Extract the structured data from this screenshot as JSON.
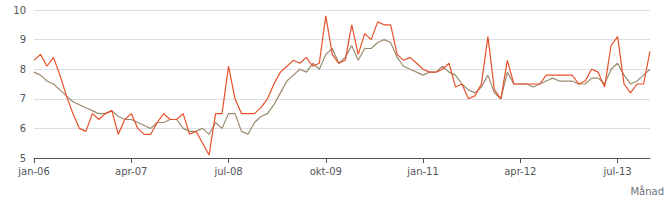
{
  "chart_data": {
    "type": "line",
    "xlabel": "Månad",
    "categories": [
      "jan-06",
      null,
      null,
      null,
      null,
      null,
      null,
      null,
      null,
      null,
      null,
      null,
      null,
      null,
      null,
      "apr-07",
      null,
      null,
      null,
      null,
      null,
      null,
      null,
      null,
      null,
      null,
      null,
      null,
      null,
      null,
      "jul-08",
      null,
      null,
      null,
      null,
      null,
      null,
      null,
      null,
      null,
      null,
      null,
      null,
      null,
      null,
      "okt-09",
      null,
      null,
      null,
      null,
      null,
      null,
      null,
      null,
      null,
      null,
      null,
      null,
      null,
      null,
      "jan-11",
      null,
      null,
      null,
      null,
      null,
      null,
      null,
      null,
      null,
      null,
      null,
      null,
      null,
      null,
      "apr-12",
      null,
      null,
      null,
      null,
      null,
      null,
      null,
      null,
      null,
      null,
      null,
      null,
      null,
      null,
      "jul-13",
      null,
      null,
      null,
      null,
      null
    ],
    "series": [
      {
        "color": "#9b8b6e",
        "values": [
          7.9,
          7.8,
          7.6,
          7.5,
          7.3,
          7.1,
          6.9,
          6.8,
          6.7,
          6.6,
          6.5,
          6.5,
          6.6,
          6.4,
          6.3,
          6.3,
          6.2,
          6.1,
          6.0,
          6.2,
          6.2,
          6.3,
          6.3,
          6.0,
          5.9,
          5.9,
          6.0,
          5.8,
          6.2,
          6.0,
          6.5,
          6.5,
          5.9,
          5.8,
          6.2,
          6.4,
          6.5,
          6.8,
          7.2,
          7.6,
          7.8,
          8.0,
          7.9,
          8.2,
          8.0,
          8.5,
          8.7,
          8.2,
          8.4,
          8.8,
          8.3,
          8.7,
          8.7,
          8.9,
          9.0,
          8.9,
          8.4,
          8.1,
          8.0,
          7.9,
          7.8,
          7.9,
          7.9,
          8.1,
          7.9,
          7.8,
          7.5,
          7.3,
          7.2,
          7.4,
          7.8,
          7.2,
          7.0,
          7.9,
          7.5,
          7.5,
          7.5,
          7.4,
          7.5,
          7.6,
          7.7,
          7.6,
          7.6,
          7.6,
          7.5,
          7.5,
          7.7,
          7.7,
          7.5,
          8.0,
          8.2,
          7.8,
          7.5,
          7.6,
          7.8,
          8.0
        ]
      },
      {
        "color": "#e8502a",
        "values": [
          8.3,
          8.5,
          8.1,
          8.4,
          7.8,
          7.1,
          6.5,
          6.0,
          5.9,
          6.5,
          6.3,
          6.5,
          6.6,
          5.8,
          6.3,
          6.5,
          6.0,
          5.8,
          5.8,
          6.2,
          6.5,
          6.3,
          6.3,
          6.5,
          5.8,
          5.9,
          5.5,
          5.1,
          6.5,
          6.5,
          8.1,
          7.0,
          6.5,
          6.5,
          6.5,
          6.7,
          7.0,
          7.5,
          7.9,
          8.1,
          8.3,
          8.2,
          8.4,
          8.1,
          8.2,
          9.8,
          8.5,
          8.2,
          8.3,
          9.5,
          8.5,
          9.2,
          9.0,
          9.6,
          9.5,
          9.5,
          8.5,
          8.3,
          8.4,
          8.2,
          8.0,
          7.9,
          7.9,
          8.0,
          8.2,
          7.4,
          7.5,
          7.0,
          7.1,
          7.5,
          9.1,
          7.3,
          7.0,
          8.3,
          7.5,
          7.5,
          7.5,
          7.5,
          7.5,
          7.8,
          7.8,
          7.8,
          7.8,
          7.8,
          7.5,
          7.6,
          8.0,
          7.9,
          7.4,
          8.8,
          9.1,
          7.5,
          7.2,
          7.5,
          7.5,
          8.6
        ]
      }
    ],
    "ylim": [
      5,
      10
    ],
    "yticks": [
      5,
      6,
      7,
      8,
      9,
      10
    ],
    "grid": true
  }
}
